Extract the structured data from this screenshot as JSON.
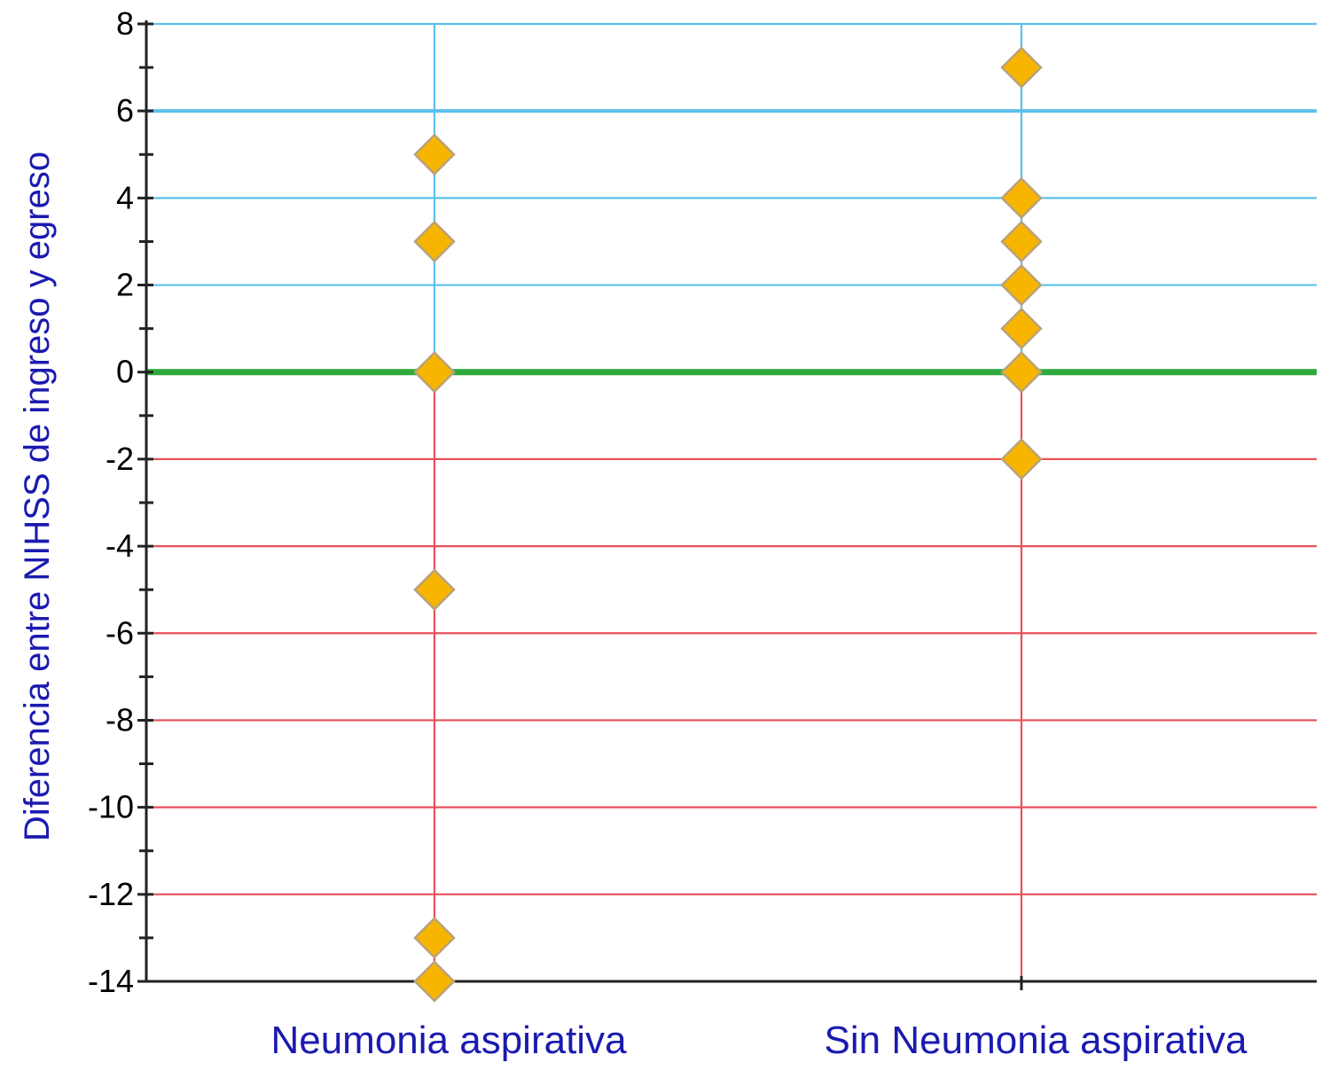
{
  "chart_data": {
    "type": "scatter",
    "title": "",
    "xlabel": "",
    "ylabel": "Diferencia entre NIHSS de ingreso y egreso",
    "ylim": [
      -14,
      8
    ],
    "yticks": [
      8,
      6,
      4,
      2,
      0,
      -2,
      -4,
      -6,
      -8,
      -10,
      -12,
      -14
    ],
    "categories": [
      "Neumonia aspirativa",
      "Sin Neumonia aspirativa"
    ],
    "series": [
      {
        "category": "Neumonia aspirativa",
        "values": [
          5,
          3,
          0,
          -5,
          -13,
          -14
        ]
      },
      {
        "category": "Sin Neumonia aspirativa",
        "values": [
          7,
          4,
          3,
          2,
          1,
          0,
          -2
        ]
      }
    ],
    "grid": true,
    "colors": {
      "positive_grid": "#5bc0eb",
      "negative_grid": "#e8505b",
      "zero_line": "#2eaa3c",
      "marker_fill": "#f7b500",
      "marker_stroke": "#b9a27a",
      "axis_title": "#1a1ab0",
      "category_label": "#1a1ab0",
      "axis": "#222222"
    },
    "marker": "diamond-icon"
  }
}
